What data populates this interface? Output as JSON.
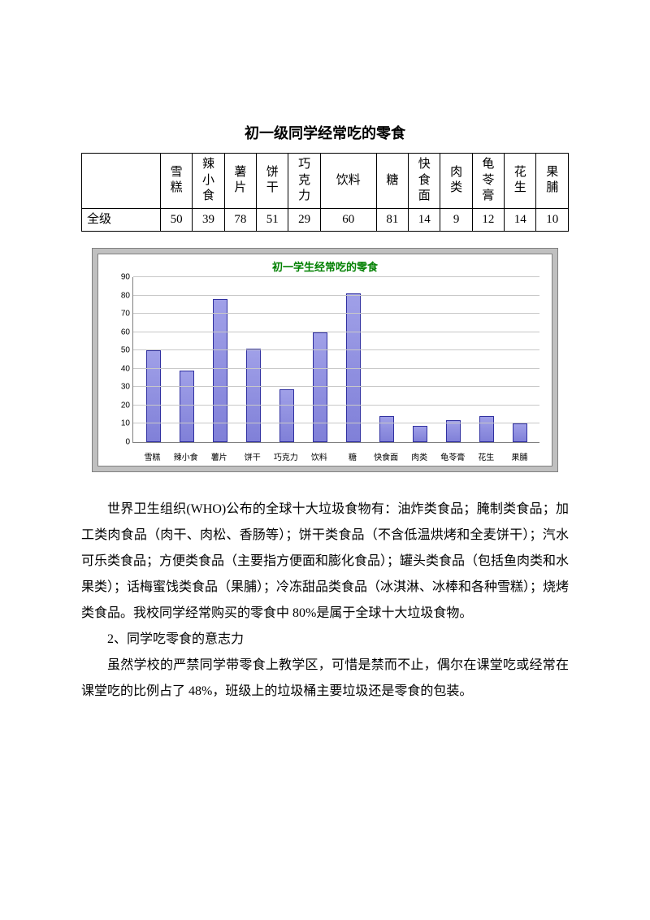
{
  "title": "初一级同学经常吃的零食",
  "table": {
    "row_label": "全级",
    "columns": [
      "雪糕",
      "辣小食",
      "薯片",
      "饼干",
      "巧克力",
      "饮料",
      "糖",
      "快食面",
      "肉类",
      "龟苓膏",
      "花生",
      "果脯"
    ],
    "columns_wrapped": [
      "雪\n糕",
      "辣\n小\n食",
      "薯\n片",
      "饼\n干",
      "巧\n克\n力",
      "饮料",
      "糖",
      "快\n食\n面",
      "肉\n类",
      "龟\n苓\n膏",
      "花\n生",
      "果\n脯"
    ],
    "values": [
      50,
      39,
      78,
      51,
      29,
      60,
      81,
      14,
      9,
      12,
      14,
      10
    ]
  },
  "chart": {
    "type": "bar",
    "title": "初一学生经常吃的零食",
    "categories": [
      "雪糕",
      "辣小食",
      "薯片",
      "饼干",
      "巧克力",
      "饮料",
      "糖",
      "快食面",
      "肉类",
      "龟苓膏",
      "花生",
      "果脯"
    ],
    "values": [
      50,
      39,
      78,
      51,
      29,
      60,
      81,
      14,
      9,
      12,
      14,
      10
    ],
    "ylim": [
      0,
      90
    ],
    "ytick_step": 10,
    "bar_color": "#8080d8",
    "bar_border": "#3030a0",
    "grid_color": "#c8c8c8",
    "title_color": "#008000",
    "outer_bg": "#c0c0c0",
    "inner_bg": "#ffffff",
    "label_fontsize": 10,
    "title_fontsize": 13
  },
  "paragraphs": {
    "p1": "世界卫生组织(WHO)公布的全球十大垃圾食物有：油炸类食品；腌制类食品；加工类肉食品（肉干、肉松、香肠等）；饼干类食品（不含低温烘烤和全麦饼干）；汽水可乐类食品；方便类食品（主要指方便面和膨化食品）；罐头类食品（包括鱼肉类和水果类）；话梅蜜饯类食品（果脯）；冷冻甜品类食品（冰淇淋、冰棒和各种雪糕）；烧烤类食品。我校同学经常购买的零食中 80%是属于全球十大垃圾食物。",
    "p2": "2、同学吃零食的意志力",
    "p3": "虽然学校的严禁同学带零食上教学区，可惜是禁而不止，偶尔在课堂吃或经常在课堂吃的比例占了 48%，班级上的垃圾桶主要垃圾还是零食的包装。"
  }
}
